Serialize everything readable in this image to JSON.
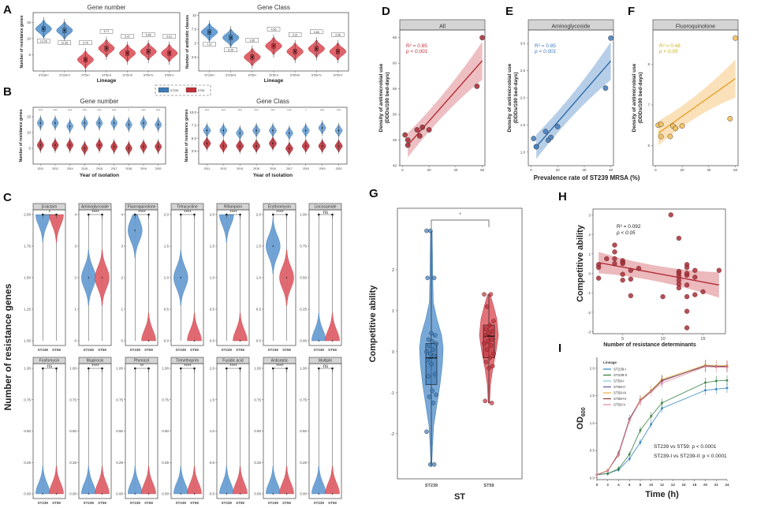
{
  "colors": {
    "st239": "#3d7ab5",
    "st59": "#c0313a",
    "st239_light": "#6a9fd3",
    "st59_light": "#e0636b",
    "allRed": "#b22a33",
    "aminoBlue": "#2e6ca6",
    "fluoroOrange": "#e4a12a",
    "hRed": "#a83038"
  },
  "chart_data": [
    {
      "panel": "A",
      "type": "violin",
      "title": "Gene number",
      "xlabel": "Lineage",
      "ylabel": "Number of resistance genes",
      "categories": [
        "ST239-I",
        "ST239-II",
        "ST59-I",
        "ST59-II",
        "ST59-III",
        "ST59-IV",
        "ST59-V"
      ],
      "group": [
        "ST239",
        "ST239",
        "ST59",
        "ST59",
        "ST59",
        "ST59",
        "ST59"
      ],
      "medians": [
        13,
        12.5,
        3.5,
        7,
        5.5,
        6,
        5.5
      ],
      "labels": [
        "12.95",
        "12.66",
        "3.76",
        "6.71",
        "5.47",
        "5.85",
        "5.61"
      ],
      "yticks": [
        5,
        10,
        15
      ],
      "ylim": [
        0,
        18
      ]
    },
    {
      "panel": "A",
      "type": "violin",
      "title": "Gene Class",
      "xlabel": "Lineage",
      "ylabel": "Number of antibiotic classes",
      "categories": [
        "ST239-I",
        "ST239-II",
        "ST59-I",
        "ST59-II",
        "ST59-III",
        "ST59-IV",
        "ST59-V"
      ],
      "group": [
        "ST239",
        "ST239",
        "ST59",
        "ST59",
        "ST59",
        "ST59",
        "ST59"
      ],
      "medians": [
        7,
        6,
        2.5,
        4.5,
        3.5,
        4,
        3.5
      ],
      "labels": [
        "7.07",
        "6.25",
        "2.65",
        "4.56",
        "3.31",
        "3.66",
        "3.96"
      ],
      "yticks": [
        2.5,
        5.0,
        7.5,
        10.0
      ],
      "ylim": [
        0,
        10.5
      ]
    },
    {
      "panel": "B",
      "type": "violin",
      "title": "Gene number",
      "xlabel": "Year of isolation",
      "ylabel": "Number of resistance genes",
      "categories": [
        "2011",
        "2012",
        "2014",
        "2015",
        "2016",
        "2017",
        "2018",
        "2019",
        "2020"
      ],
      "series": [
        {
          "name": "ST239",
          "medians": [
            13,
            13,
            12,
            13,
            13,
            13,
            12.5,
            13,
            12.5
          ]
        },
        {
          "name": "ST59",
          "medians": [
            6,
            6,
            6,
            5,
            6,
            5.5,
            5,
            5.5,
            5.5
          ]
        }
      ],
      "significance": [
        "****",
        "****",
        "****",
        "****",
        "****",
        "****",
        "*",
        "****",
        "****"
      ],
      "yticks": [
        5,
        10,
        15
      ],
      "ylim": [
        0,
        18
      ]
    },
    {
      "panel": "B",
      "type": "violin",
      "title": "Gene Class",
      "xlabel": "Year of isolation",
      "ylabel": "Number of resistance genes",
      "categories": [
        "2011",
        "2013",
        "2014",
        "2015",
        "2016",
        "2017",
        "2018",
        "2019",
        "2020"
      ],
      "series": [
        {
          "name": "ST239",
          "medians": [
            6.5,
            6.5,
            6,
            6.5,
            6.5,
            6,
            6.5,
            7,
            6.5
          ]
        },
        {
          "name": "ST59",
          "medians": [
            4,
            3.5,
            3.5,
            3.5,
            4,
            3,
            3.5,
            3.5,
            3.5
          ]
        }
      ],
      "significance": [
        "****",
        "****",
        "****",
        "****",
        "****",
        "****",
        "*",
        "****",
        "****"
      ],
      "yticks": [
        2.5,
        5.0,
        7.5,
        10.0
      ],
      "ylim": [
        0,
        11
      ]
    },
    {
      "panel": "C",
      "type": "violin",
      "ylabel": "Number of resistance genes",
      "groups": [
        "ST239",
        "ST59"
      ],
      "facets": [
        {
          "name": "β-lactam",
          "sig": "*",
          "yticks": [
            "1.00",
            "1.25",
            "1.50",
            "1.75",
            "2.00"
          ],
          "ylim": [
            1,
            2
          ],
          "st239": 2,
          "st59": 2
        },
        {
          "name": "Aminoglycoside",
          "sig": "****",
          "yticks": [
            "0",
            "1",
            "2",
            "3",
            "4"
          ],
          "ylim": [
            0,
            4
          ],
          "st239": 2,
          "st59": 2
        },
        {
          "name": "Fluoroquinolone",
          "sig": "****",
          "yticks": [
            "0",
            "1",
            "2",
            "3",
            "4"
          ],
          "ylim": [
            0,
            4
          ],
          "st239": 3.5,
          "st59": 0
        },
        {
          "name": "Tetracycline",
          "sig": "****",
          "yticks": [
            "0.0",
            "0.5",
            "1.0",
            "1.5",
            "2.0"
          ],
          "ylim": [
            0,
            2
          ],
          "st239": 1,
          "st59": 0
        },
        {
          "name": "Rifampicin",
          "sig": "****",
          "yticks": [
            "0.0",
            "0.5",
            "1.0",
            "1.5",
            "2.0"
          ],
          "ylim": [
            0,
            2
          ],
          "st239": 2,
          "st59": 0
        },
        {
          "name": "Erythromycin",
          "sig": "****",
          "yticks": [
            "0.0",
            "0.5",
            "1.0",
            "1.5",
            "2.0"
          ],
          "ylim": [
            0,
            2
          ],
          "st239": 1.5,
          "st59": 1
        },
        {
          "name": "Lincosamide",
          "sig": "ns",
          "yticks": [
            "0.00",
            "0.25",
            "0.50",
            "0.75",
            "1.00"
          ],
          "ylim": [
            0,
            1
          ],
          "st239": 0,
          "st59": 0
        },
        {
          "name": "Fosfomycin",
          "sig": "ns",
          "yticks": [
            "0.00",
            "0.25",
            "0.50",
            "0.75",
            "1.00"
          ],
          "ylim": [
            0,
            1
          ],
          "st239": 0,
          "st59": 0
        },
        {
          "name": "Mupirocin",
          "sig": "****",
          "yticks": [
            "0.00",
            "0.25",
            "0.50",
            "0.75",
            "1.00"
          ],
          "ylim": [
            0,
            1
          ],
          "st239": 0,
          "st59": 0
        },
        {
          "name": "Phenicol",
          "sig": "**",
          "yticks": [
            "0.00",
            "0.25",
            "0.50",
            "0.75",
            "1.00"
          ],
          "ylim": [
            0,
            1
          ],
          "st239": 0,
          "st59": 0
        },
        {
          "name": "Trimethoprim",
          "sig": "****",
          "yticks": [
            "0.00",
            "0.25",
            "0.50",
            "0.75",
            "1.00"
          ],
          "ylim": [
            0,
            1
          ],
          "st239": 0,
          "st59": 0
        },
        {
          "name": "Fusidic acid",
          "sig": "****",
          "yticks": [
            "0.0",
            "0.5",
            "1.0",
            "1.5",
            "2.0"
          ],
          "ylim": [
            0,
            2
          ],
          "st239": 0,
          "st59": 0
        },
        {
          "name": "Antiseptic",
          "sig": "****",
          "yticks": [
            "0.00",
            "0.25",
            "0.50",
            "0.75",
            "1.00"
          ],
          "ylim": [
            0,
            1
          ],
          "st239": 0,
          "st59": 0
        },
        {
          "name": "Multiple",
          "sig": "ns",
          "yticks": [
            "0.00",
            "0.25",
            "0.50",
            "0.75",
            "1.00"
          ],
          "ylim": [
            0,
            1
          ],
          "st239": 0,
          "st59": 0
        }
      ]
    },
    {
      "panel": "D",
      "type": "scatter",
      "strip": "All",
      "ylabel": "Density of antimicrobial use\n(DDDs/100 bed-days)",
      "x": [
        2,
        4,
        4,
        11,
        13,
        15,
        20,
        56,
        60
      ],
      "y": [
        46,
        45,
        44,
        47,
        45.8,
        47.5,
        47,
        55.5,
        65
      ],
      "fit": {
        "x0": 4,
        "y0": 44,
        "x1": 60,
        "y1": 60.5
      },
      "annotation": [
        "R² = 0.85",
        "p < 0.001"
      ],
      "xticks": [
        0,
        20,
        40,
        60
      ],
      "yticks": [
        40,
        45,
        50,
        55,
        60,
        65
      ],
      "xlim": [
        -2,
        62
      ],
      "ylim": [
        40,
        66.5
      ]
    },
    {
      "panel": "E",
      "type": "scatter",
      "strip": "Aminoglycoside",
      "ylabel": "Density of antimicrobial use\n(DDDs/100 bed-days)",
      "xlabel": "Prevalence rate of ST239 MRSA (%)",
      "x": [
        2,
        4,
        4,
        11,
        13,
        15,
        20,
        56,
        60
      ],
      "y": [
        1.25,
        1.1,
        1.1,
        1.38,
        1.22,
        1.27,
        1.47,
        2.18,
        3.1
      ],
      "fit": {
        "x0": 4,
        "y0": 1.1,
        "x1": 60,
        "y1": 2.68
      },
      "annotation": [
        "R² = 0.85",
        "p < 0.001"
      ],
      "xticks": [
        0,
        20,
        40,
        60
      ],
      "yticks": [
        1.0,
        1.5,
        2.0,
        2.5,
        3.0
      ],
      "xlim": [
        -2,
        62
      ],
      "ylim": [
        0.75,
        3.25
      ]
    },
    {
      "panel": "F",
      "type": "scatter",
      "strip": "Fluoroquinolone",
      "ylabel": "Density of antimicrobial use\n(DDDs/100 bed-days)",
      "x": [
        2,
        4,
        4,
        11,
        13,
        15,
        20,
        56,
        60
      ],
      "y": [
        6.5,
        6.52,
        6.22,
        6.22,
        6.48,
        6.42,
        6.48,
        6.66,
        8.65
      ],
      "fit": {
        "x0": 2,
        "y0": 6.3,
        "x1": 60,
        "y1": 7.65
      },
      "annotation": [
        "R² = 0.48",
        "p < 0.05"
      ],
      "xticks": [
        0,
        20,
        40,
        60
      ],
      "yticks": [
        6,
        7,
        8
      ],
      "xlim": [
        -2,
        62
      ],
      "ylim": [
        5.5,
        8.85
      ]
    },
    {
      "panel": "G",
      "type": "violin",
      "xlabel": "ST",
      "ylabel": "Competitive ability",
      "categories": [
        "ST239",
        "ST59"
      ],
      "st239_points": [
        2.95,
        2.95,
        1.8,
        1.8,
        0.45,
        0.4,
        0.3,
        0.25,
        0.2,
        0.15,
        0.05,
        0.0,
        -0.05,
        -0.1,
        -0.2,
        -0.3,
        -0.55,
        -0.6,
        -0.95,
        -1.05,
        -1.1,
        -1.25,
        -1.95,
        -2.75,
        -2.75
      ],
      "st59_points": [
        1.4,
        1.4,
        1.1,
        0.75,
        0.65,
        0.55,
        0.5,
        0.45,
        0.4,
        0.3,
        0.25,
        0.2,
        0.15,
        0.05,
        -0.05,
        -0.15,
        -0.25,
        -0.35,
        -0.4,
        -1.2,
        -1.25
      ],
      "st239_box": {
        "q1": -0.8,
        "median": -0.15,
        "q3": 0.2
      },
      "st59_box": {
        "q1": -0.15,
        "median": 0.38,
        "q3": 0.65
      },
      "significance": "*",
      "yticks": [
        -2,
        -1,
        0,
        1,
        2
      ],
      "ylim": [
        -3.1,
        3.5
      ]
    },
    {
      "panel": "H",
      "type": "scatter",
      "xlabel": "Number of resistance determinants",
      "ylabel": "Competitive ability",
      "x": [
        2,
        2,
        2,
        3,
        4,
        4,
        4,
        4,
        5,
        5,
        5,
        5,
        5,
        6,
        6,
        6,
        7,
        10,
        11,
        12,
        12,
        12,
        12,
        12,
        12,
        12,
        13,
        13,
        13,
        13,
        13,
        13,
        13,
        13,
        14,
        14,
        14,
        15,
        17
      ],
      "y": [
        0.45,
        0.3,
        -0.25,
        0.75,
        1.45,
        1.1,
        0.75,
        0.5,
        0.65,
        0.55,
        0.5,
        -0.05,
        -0.35,
        0.15,
        -0.3,
        -1.15,
        0.25,
        -1.2,
        3.0,
        1.8,
        0.1,
        0.0,
        -0.15,
        -0.35,
        -0.55,
        -0.75,
        0.45,
        0.3,
        -0.1,
        -0.6,
        -1.2,
        -1.95,
        -2.8,
        0.0,
        0.15,
        -0.2,
        -1.1,
        -0.95,
        0.15
      ],
      "fit": {
        "x0": 2,
        "y0": 0.55,
        "x1": 17,
        "y1": -0.6
      },
      "annotation": [
        "R² = 0.092",
        "p < 0.05"
      ],
      "xticks": [
        5,
        10,
        15
      ],
      "yticks": [
        -3,
        -2,
        -1,
        0,
        1,
        2,
        3
      ],
      "xlim": [
        1.3,
        17.8
      ],
      "ylim": [
        -3.1,
        3.3
      ]
    },
    {
      "panel": "I",
      "type": "line",
      "xlabel": "Time (h)",
      "ylabel": "OD600",
      "x": [
        0,
        2,
        4,
        6,
        8,
        10,
        12,
        20,
        22,
        24
      ],
      "legend_title": "Lineage",
      "series": [
        {
          "name": "ST239-I",
          "color": "#2d7fb8",
          "values": [
            0.06,
            0.08,
            0.15,
            0.35,
            0.65,
            0.98,
            1.27,
            1.6,
            1.62,
            1.64
          ]
        },
        {
          "name": "ST239-II",
          "color": "#2f7a3a",
          "values": [
            0.06,
            0.08,
            0.17,
            0.43,
            0.87,
            1.13,
            1.37,
            1.74,
            1.77,
            1.78
          ]
        },
        {
          "name": "ST59-I",
          "color": "#7fc7d9",
          "values": [
            0.06,
            0.13,
            0.44,
            1.07,
            1.41,
            1.58,
            1.78,
            2.04,
            2.03,
            2.03
          ]
        },
        {
          "name": "ST59-II",
          "color": "#6b4fa0",
          "values": [
            0.06,
            0.13,
            0.45,
            1.08,
            1.42,
            1.59,
            1.77,
            2.05,
            2.04,
            2.04
          ]
        },
        {
          "name": "ST59-III",
          "color": "#e8b547",
          "values": [
            0.06,
            0.14,
            0.43,
            1.05,
            1.43,
            1.6,
            1.8,
            2.06,
            2.05,
            2.05
          ]
        },
        {
          "name": "ST59-IV",
          "color": "#8c3b2f",
          "values": [
            0.06,
            0.13,
            0.44,
            1.06,
            1.41,
            1.58,
            1.78,
            2.04,
            2.03,
            2.03
          ]
        },
        {
          "name": "ST59-V",
          "color": "#e08aa3",
          "values": [
            0.06,
            0.13,
            0.42,
            1.05,
            1.4,
            1.57,
            1.73,
            2.03,
            2.02,
            2.02
          ]
        }
      ],
      "annotations": [
        "ST239 vs ST59: p < 0.0001",
        "ST239-I vs ST239-II: p < 0.0001"
      ],
      "xticks": [
        0,
        2,
        4,
        6,
        8,
        10,
        12,
        14,
        16,
        18,
        20,
        22,
        24
      ],
      "yticks": [
        0.0,
        0.5,
        1.0,
        1.5,
        2.0
      ],
      "xlim": [
        0,
        24
      ],
      "ylim": [
        -0.03,
        2.2
      ]
    }
  ],
  "legendAB": {
    "items": [
      "ST239",
      "ST59"
    ]
  },
  "panelLabels": [
    "A",
    "B",
    "C",
    "D",
    "E",
    "F",
    "G",
    "H",
    "I"
  ]
}
